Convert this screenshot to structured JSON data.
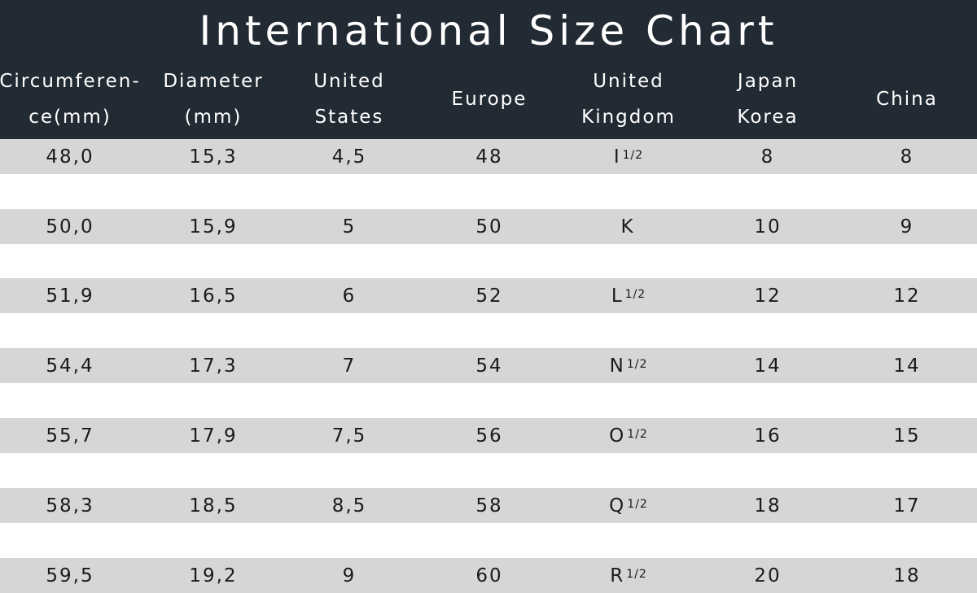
{
  "title": "International Size Chart",
  "headers": [
    "Circumferen-\nce(mm)",
    "Diameter\n(mm)",
    "United\nStates",
    "Europe",
    "United\nKingdom",
    "Japan\nKorea",
    "China"
  ],
  "rows": [
    {
      "circumference": "48,0",
      "diameter": "15,3",
      "us": "4,5",
      "europe": "48",
      "uk": "I",
      "uk_fraction": "1/2",
      "japan_korea": "8",
      "china": "8"
    },
    {
      "circumference": "50,0",
      "diameter": "15,9",
      "us": "5",
      "europe": "50",
      "uk": "K",
      "uk_fraction": "",
      "japan_korea": "10",
      "china": "9"
    },
    {
      "circumference": "51,9",
      "diameter": "16,5",
      "us": "6",
      "europe": "52",
      "uk": "L",
      "uk_fraction": "1/2",
      "japan_korea": "12",
      "china": "12"
    },
    {
      "circumference": "54,4",
      "diameter": "17,3",
      "us": "7",
      "europe": "54",
      "uk": "N",
      "uk_fraction": "1/2",
      "japan_korea": "14",
      "china": "14"
    },
    {
      "circumference": "55,7",
      "diameter": "17,9",
      "us": "7,5",
      "europe": "56",
      "uk": "O",
      "uk_fraction": "1/2",
      "japan_korea": "16",
      "china": "15"
    },
    {
      "circumference": "58,3",
      "diameter": "18,5",
      "us": "8,5",
      "europe": "58",
      "uk": "Q",
      "uk_fraction": "1/2",
      "japan_korea": "18",
      "china": "17"
    },
    {
      "circumference": "59,5",
      "diameter": "19,2",
      "us": "9",
      "europe": "60",
      "uk": "R",
      "uk_fraction": "1/2",
      "japan_korea": "20",
      "china": "18"
    }
  ],
  "colors": {
    "header_bg": "#222a34",
    "row_shade": "#d6d6d6"
  }
}
